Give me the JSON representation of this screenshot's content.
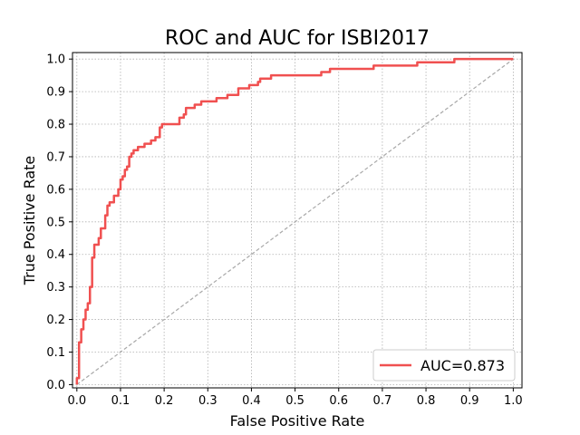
{
  "chart_data": {
    "type": "line",
    "title": "ROC and AUC for ISBI2017",
    "xlabel": "False Positive Rate",
    "ylabel": "True Positive Rate",
    "xlim": [
      -0.01,
      1.02
    ],
    "ylim": [
      -0.01,
      1.02
    ],
    "grid": true,
    "legend_position": "lower-right",
    "xticks": [
      "0.0",
      "0.1",
      "0.2",
      "0.3",
      "0.4",
      "0.5",
      "0.6",
      "0.7",
      "0.8",
      "0.9",
      "1.0"
    ],
    "yticks": [
      "0.0",
      "0.1",
      "0.2",
      "0.3",
      "0.4",
      "0.5",
      "0.6",
      "0.7",
      "0.8",
      "0.9",
      "1.0"
    ],
    "series": [
      {
        "name": "AUC=0.873",
        "color": "#f05050",
        "x": [
          0.0,
          0.0,
          0.005,
          0.005,
          0.01,
          0.01,
          0.015,
          0.015,
          0.02,
          0.02,
          0.025,
          0.025,
          0.03,
          0.03,
          0.035,
          0.035,
          0.04,
          0.04,
          0.05,
          0.05,
          0.055,
          0.055,
          0.065,
          0.065,
          0.07,
          0.07,
          0.075,
          0.075,
          0.085,
          0.085,
          0.095,
          0.095,
          0.1,
          0.1,
          0.105,
          0.105,
          0.11,
          0.11,
          0.115,
          0.115,
          0.12,
          0.12,
          0.125,
          0.125,
          0.13,
          0.13,
          0.14,
          0.14,
          0.155,
          0.155,
          0.17,
          0.17,
          0.18,
          0.18,
          0.19,
          0.19,
          0.195,
          0.195,
          0.235,
          0.235,
          0.245,
          0.245,
          0.25,
          0.25,
          0.27,
          0.27,
          0.285,
          0.285,
          0.32,
          0.32,
          0.345,
          0.345,
          0.37,
          0.37,
          0.395,
          0.395,
          0.415,
          0.415,
          0.42,
          0.42,
          0.43,
          0.43,
          0.445,
          0.445,
          0.56,
          0.56,
          0.58,
          0.58,
          0.68,
          0.68,
          0.78,
          0.78,
          0.865,
          0.865,
          1.0
        ],
        "y": [
          0.0,
          0.02,
          0.02,
          0.13,
          0.13,
          0.17,
          0.17,
          0.2,
          0.2,
          0.23,
          0.23,
          0.25,
          0.25,
          0.3,
          0.3,
          0.39,
          0.39,
          0.43,
          0.43,
          0.45,
          0.45,
          0.48,
          0.48,
          0.52,
          0.52,
          0.55,
          0.55,
          0.56,
          0.56,
          0.58,
          0.58,
          0.6,
          0.6,
          0.63,
          0.63,
          0.64,
          0.64,
          0.66,
          0.66,
          0.67,
          0.67,
          0.7,
          0.7,
          0.71,
          0.71,
          0.72,
          0.72,
          0.73,
          0.73,
          0.74,
          0.74,
          0.75,
          0.75,
          0.76,
          0.76,
          0.79,
          0.79,
          0.8,
          0.8,
          0.82,
          0.82,
          0.83,
          0.83,
          0.85,
          0.85,
          0.86,
          0.86,
          0.87,
          0.87,
          0.88,
          0.88,
          0.89,
          0.89,
          0.91,
          0.91,
          0.92,
          0.92,
          0.93,
          0.93,
          0.94,
          0.94,
          0.94,
          0.94,
          0.95,
          0.95,
          0.96,
          0.96,
          0.97,
          0.97,
          0.98,
          0.98,
          0.99,
          0.99,
          1.0,
          1.0
        ]
      },
      {
        "name": "",
        "color": "#a8a8a8",
        "dashed": true,
        "x": [
          0.0,
          1.0
        ],
        "y": [
          0.0,
          1.0
        ]
      }
    ]
  }
}
